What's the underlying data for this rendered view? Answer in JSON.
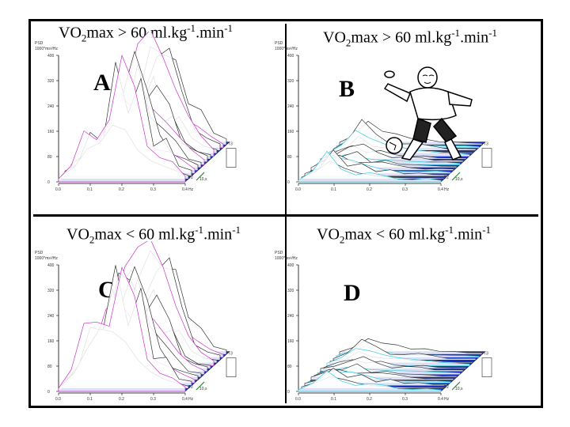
{
  "panels": [
    {
      "id": "A",
      "title_prefix": "VO",
      "title_sub": "2",
      "title_rest": "max > 60 ml.kg",
      "exp1": "-1",
      "mid": ".min",
      "exp2": "-1",
      "letter": "A"
    },
    {
      "id": "B",
      "title_prefix": "VO",
      "title_sub": "2",
      "title_rest": "max > 60 ml.kg",
      "exp1": "-1",
      "mid": ".min",
      "exp2": "-1",
      "letter": "B"
    },
    {
      "id": "C",
      "title_prefix": "VO",
      "title_sub": "2",
      "title_rest": "max < 60 ml.kg",
      "exp1": "-1",
      "mid": ".min",
      "exp2": "-1",
      "letter": "C"
    },
    {
      "id": "D",
      "title_prefix": "VO",
      "title_sub": "2",
      "title_rest": "max < 60 ml.kg",
      "exp1": "-1",
      "mid": ".min",
      "exp2": "-1",
      "letter": "D"
    }
  ],
  "axes": {
    "ylabel_line1": "PSD",
    "ylabel_line2": "1000*ms²/Hz",
    "yticks": [
      "0",
      "80",
      "160",
      "240",
      "320",
      "400"
    ],
    "xticks": [
      "0.0",
      "0.1",
      "0.2",
      "0.3",
      "0.4"
    ],
    "xunit": "Hz",
    "time_label_1": "T3",
    "time_label_2": "T2",
    "time_label_3": "10,s"
  },
  "chart_data": [
    {
      "type": "area",
      "panel": "A",
      "title": "VO2max > 60 ml.kg-1.min-1",
      "ylabel": "PSD 1000*ms²/Hz",
      "xlabel": "Hz",
      "ylim": [
        0,
        400
      ],
      "xlim": [
        0.0,
        0.4
      ],
      "x": [
        0.0,
        0.04,
        0.08,
        0.12,
        0.16,
        0.2,
        0.24,
        0.28,
        0.32,
        0.36,
        0.4
      ],
      "values": [
        20,
        60,
        150,
        200,
        360,
        420,
        300,
        200,
        120,
        60,
        20
      ],
      "color": "#cc33cc"
    },
    {
      "type": "area",
      "panel": "B",
      "title": "VO2max > 60 ml.kg-1.min-1",
      "ylabel": "PSD 1000*ms²/Hz",
      "xlabel": "Hz",
      "ylim": [
        0,
        400
      ],
      "xlim": [
        0.0,
        0.4
      ],
      "x": [
        0.0,
        0.04,
        0.08,
        0.12,
        0.16,
        0.2,
        0.24,
        0.28,
        0.32,
        0.36,
        0.4
      ],
      "values": [
        10,
        40,
        90,
        60,
        40,
        30,
        20,
        15,
        10,
        10,
        5
      ],
      "color": "#33ccdd"
    },
    {
      "type": "area",
      "panel": "C",
      "title": "VO2max < 60 ml.kg-1.min-1",
      "ylabel": "PSD 1000*ms²/Hz",
      "xlabel": "Hz",
      "ylim": [
        0,
        400
      ],
      "xlim": [
        0.0,
        0.4
      ],
      "x": [
        0.0,
        0.04,
        0.08,
        0.12,
        0.16,
        0.2,
        0.24,
        0.28,
        0.32,
        0.36,
        0.4
      ],
      "values": [
        20,
        80,
        200,
        330,
        380,
        400,
        300,
        180,
        90,
        40,
        15
      ],
      "color": "#cc33cc"
    },
    {
      "type": "area",
      "panel": "D",
      "title": "VO2max < 60 ml.kg-1.min-1",
      "ylabel": "PSD 1000*ms²/Hz",
      "xlabel": "Hz",
      "ylim": [
        0,
        400
      ],
      "xlim": [
        0.0,
        0.4
      ],
      "x": [
        0.0,
        0.04,
        0.08,
        0.12,
        0.16,
        0.2,
        0.24,
        0.28,
        0.32,
        0.36,
        0.4
      ],
      "values": [
        10,
        30,
        60,
        50,
        35,
        25,
        20,
        15,
        10,
        8,
        5
      ],
      "color": "#33ccdd"
    }
  ]
}
